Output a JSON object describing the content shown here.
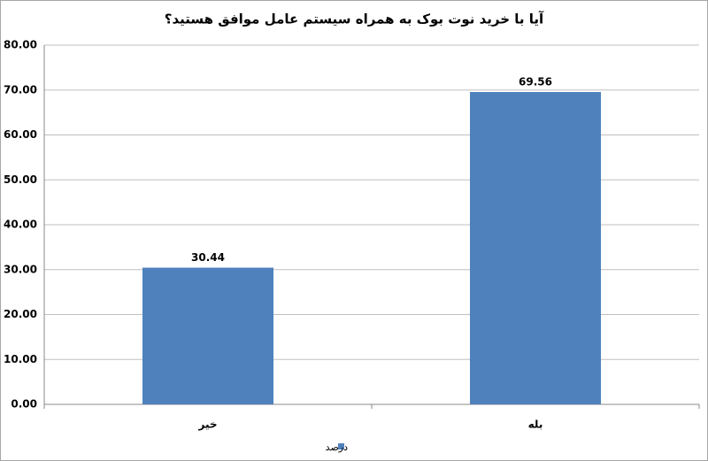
{
  "chart_data": {
    "type": "bar",
    "title": "آیا با خرید نوت بوک به همراه سیستم عامل موافق هستید؟",
    "categories": [
      "خیر",
      "بله"
    ],
    "series": [
      {
        "name": "درصد",
        "color": "#4f81bd",
        "values": [
          30.44,
          69.56
        ]
      }
    ],
    "ylim": [
      0,
      80
    ],
    "yticks": [
      {
        "value": 0,
        "label": "0.00"
      },
      {
        "value": 10,
        "label": "10.00"
      },
      {
        "value": 20,
        "label": "20.00"
      },
      {
        "value": 30,
        "label": "30.00"
      },
      {
        "value": 40,
        "label": "40.00"
      },
      {
        "value": 50,
        "label": "50.00"
      },
      {
        "value": 60,
        "label": "60.00"
      },
      {
        "value": 70,
        "label": "70.00"
      },
      {
        "value": 80,
        "label": "80.00"
      }
    ],
    "grid": true,
    "legend": "bottom"
  }
}
